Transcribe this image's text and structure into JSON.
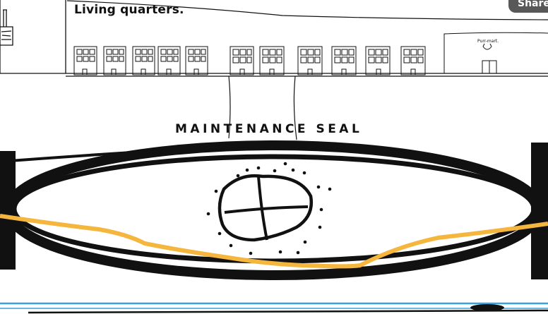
{
  "scene": {
    "title": "Living quarters.",
    "seal_label": "MAINTENANCE SEAL",
    "shop_label": "Purr-mart.",
    "share_label": "Share"
  },
  "colors": {
    "ink": "#111111",
    "orange_line": "#f5b63d",
    "blue_line": "#3aa0e0",
    "share_bg": "#585858"
  }
}
